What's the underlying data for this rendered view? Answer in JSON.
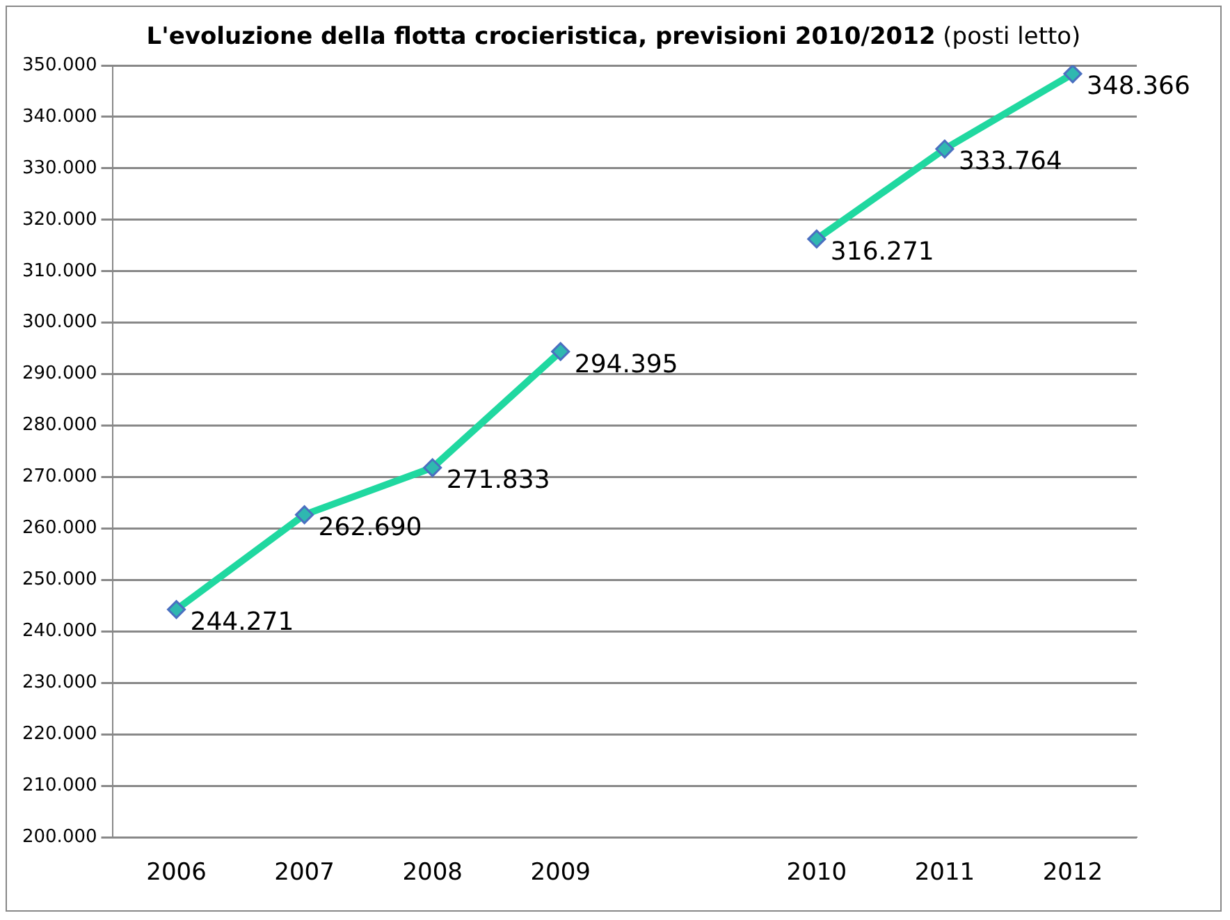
{
  "chart_data": {
    "type": "line",
    "title": "L'evoluzione della flotta crocieristica, previsioni 2010/2012",
    "subtitle": "(posti letto)",
    "categories": [
      "2006",
      "2007",
      "2008",
      "2009",
      null,
      "2010",
      "2011",
      "2012"
    ],
    "series": [
      {
        "color": "#20d8a0",
        "values": [
          244271,
          262690,
          271833,
          294395,
          null,
          316271,
          333764,
          348366
        ],
        "value_labels": [
          "244.271",
          "262.690",
          "271.833",
          "294.395",
          null,
          "316.271",
          "333.764",
          "348.366"
        ]
      }
    ],
    "ylim": [
      200000,
      350000
    ],
    "yticks": [
      {
        "value": 200000,
        "label": "200.000"
      },
      {
        "value": 210000,
        "label": "210.000"
      },
      {
        "value": 220000,
        "label": "220.000"
      },
      {
        "value": 230000,
        "label": "230.000"
      },
      {
        "value": 240000,
        "label": "240.000"
      },
      {
        "value": 250000,
        "label": "250.000"
      },
      {
        "value": 260000,
        "label": "260.000"
      },
      {
        "value": 270000,
        "label": "270.000"
      },
      {
        "value": 280000,
        "label": "280.000"
      },
      {
        "value": 290000,
        "label": "290.000"
      },
      {
        "value": 300000,
        "label": "300.000"
      },
      {
        "value": 310000,
        "label": "310.000"
      },
      {
        "value": 320000,
        "label": "320.000"
      },
      {
        "value": 330000,
        "label": "330.000"
      },
      {
        "value": 340000,
        "label": "340.000"
      },
      {
        "value": 350000,
        "label": "350.000"
      }
    ],
    "grid": "y",
    "legend": false,
    "marker": "diamond",
    "line_style": "solid"
  }
}
